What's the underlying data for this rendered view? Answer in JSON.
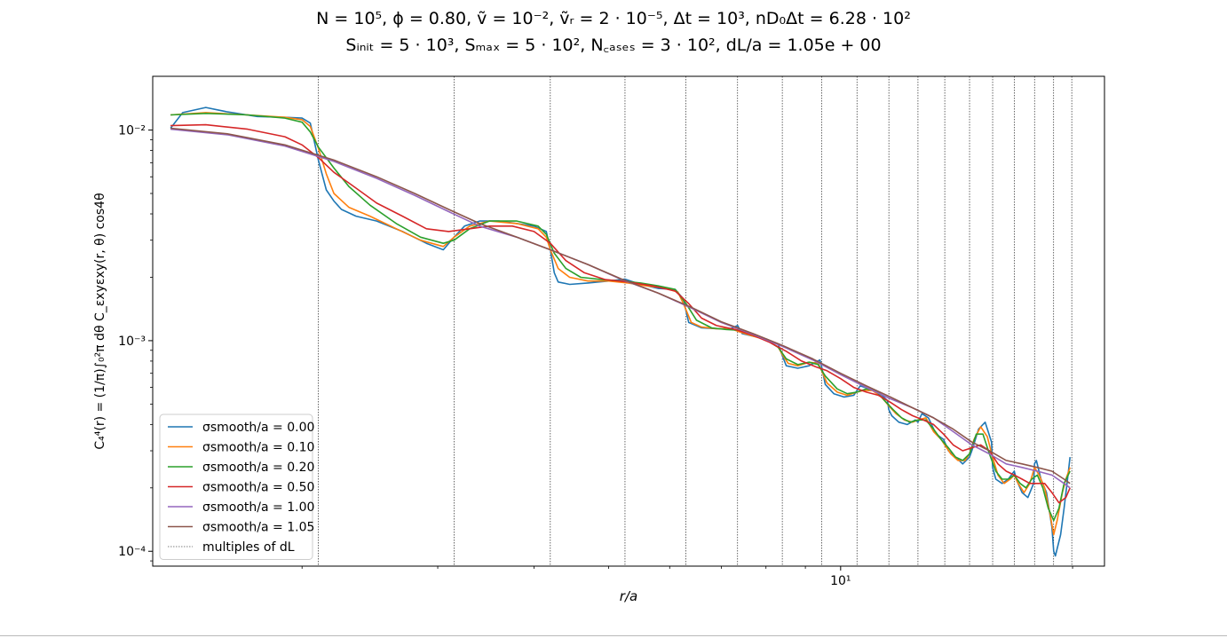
{
  "chart_data": {
    "type": "line",
    "title_line1": "N = 10⁵, ϕ = 0.80, ṽ = 10⁻², ṽᵣ = 2 · 10⁻⁵, Δt = 10³, nD₀Δt = 6.28 · 10²",
    "title_line2": "Sᵢₙᵢₜ = 5 · 10³, Sₘₐₓ = 5 · 10², N꜀ₐₛₑₛ = 3 · 10², dL/a = 1.05e + 00",
    "xlabel": "r/a",
    "ylabel": "C₄⁴(r) = (1/π)∫₀²π dθ C_εxyεxy(r, θ) cos4θ",
    "x_scale": "log",
    "y_scale": "log",
    "xlim": [
      1.28,
      22.0
    ],
    "ylim": [
      8.5e-05,
      0.018
    ],
    "x_tick_labels": [
      {
        "value": 10,
        "label": "10¹"
      }
    ],
    "y_tick_labels": [
      {
        "value": 0.01,
        "label": "10⁻²"
      },
      {
        "value": 0.001,
        "label": "10⁻³"
      },
      {
        "value": 0.0001,
        "label": "10⁻⁴"
      }
    ],
    "grid": false,
    "legend_position": "lower-left",
    "dL_multiples": [
      2.1,
      3.15,
      4.2,
      5.25,
      6.3,
      7.35,
      8.4,
      9.45,
      10.5,
      11.55,
      12.6,
      13.65,
      14.7,
      15.75,
      16.8,
      17.85,
      18.9,
      19.95
    ],
    "dL_multiples_label": "multiples of dL",
    "series": [
      {
        "name": "σsmooth/a = 0.00",
        "color": "#1f77b4",
        "x": [
          1.35,
          1.4,
          1.5,
          1.6,
          1.75,
          1.9,
          2.0,
          2.05,
          2.1,
          2.15,
          2.2,
          2.25,
          2.35,
          2.5,
          2.7,
          2.9,
          3.05,
          3.15,
          3.25,
          3.4,
          3.6,
          3.8,
          4.0,
          4.15,
          4.2,
          4.25,
          4.3,
          4.45,
          4.7,
          5.0,
          5.25,
          5.5,
          5.8,
          6.1,
          6.25,
          6.3,
          6.35,
          6.6,
          6.9,
          7.2,
          7.35,
          7.45,
          7.7,
          8.0,
          8.3,
          8.4,
          8.5,
          8.8,
          9.1,
          9.4,
          9.45,
          9.55,
          9.8,
          10.1,
          10.4,
          10.5,
          10.6,
          10.9,
          11.2,
          11.5,
          11.55,
          11.65,
          11.9,
          12.2,
          12.5,
          12.6,
          12.75,
          13.0,
          13.3,
          13.6,
          13.65,
          13.8,
          14.1,
          14.4,
          14.7,
          14.8,
          15.1,
          15.4,
          15.7,
          15.75,
          15.9,
          16.2,
          16.5,
          16.8,
          16.9,
          17.2,
          17.5,
          17.8,
          17.85,
          17.95,
          18.2,
          18.5,
          18.8,
          18.9,
          19.0,
          19.3,
          19.5,
          19.7,
          19.85
        ],
        "y": [
          0.0102,
          0.0121,
          0.0128,
          0.0122,
          0.0116,
          0.0115,
          0.0114,
          0.0108,
          0.0072,
          0.0052,
          0.0046,
          0.0042,
          0.0039,
          0.0037,
          0.0033,
          0.0029,
          0.0027,
          0.0031,
          0.0035,
          0.0037,
          0.0037,
          0.0036,
          0.0035,
          0.0033,
          0.0027,
          0.0021,
          0.0019,
          0.00185,
          0.00188,
          0.00192,
          0.00196,
          0.00185,
          0.00177,
          0.00175,
          0.00158,
          0.00138,
          0.00122,
          0.00115,
          0.00114,
          0.00114,
          0.00118,
          0.00108,
          0.00105,
          0.00102,
          0.00096,
          0.00085,
          0.00076,
          0.00074,
          0.00076,
          0.00081,
          0.00075,
          0.00062,
          0.00056,
          0.00054,
          0.00055,
          0.00058,
          0.00061,
          0.00059,
          0.00057,
          0.00052,
          0.00047,
          0.00044,
          0.00041,
          0.0004,
          0.00042,
          0.00041,
          0.00045,
          0.00043,
          0.00036,
          0.00034,
          0.00033,
          0.0003,
          0.00028,
          0.00026,
          0.00028,
          0.0003,
          0.00038,
          0.00041,
          0.00033,
          0.00025,
          0.00022,
          0.00021,
          0.00022,
          0.00024,
          0.00022,
          0.00019,
          0.00018,
          0.00021,
          0.00026,
          0.00027,
          0.00022,
          0.00019,
          0.00013,
          0.0001,
          9.5e-05,
          0.00012,
          0.00016,
          0.00022,
          0.00028
        ]
      },
      {
        "name": "σsmooth/a = 0.10",
        "color": "#ff7f0e",
        "x": [
          1.35,
          1.5,
          1.7,
          1.9,
          2.0,
          2.05,
          2.1,
          2.15,
          2.2,
          2.3,
          2.45,
          2.65,
          2.85,
          3.05,
          3.15,
          3.3,
          3.5,
          3.8,
          4.05,
          4.15,
          4.2,
          4.3,
          4.45,
          4.7,
          5.0,
          5.3,
          5.6,
          5.9,
          6.15,
          6.25,
          6.3,
          6.4,
          6.6,
          6.9,
          7.2,
          7.4,
          7.7,
          8.0,
          8.3,
          8.4,
          8.55,
          8.8,
          9.1,
          9.35,
          9.45,
          9.6,
          9.9,
          10.2,
          10.5,
          10.7,
          11.0,
          11.3,
          11.55,
          11.8,
          12.1,
          12.4,
          12.6,
          12.9,
          13.2,
          13.5,
          13.65,
          13.9,
          14.2,
          14.5,
          14.7,
          14.9,
          15.2,
          15.5,
          15.75,
          16.0,
          16.3,
          16.6,
          16.8,
          17.0,
          17.3,
          17.6,
          17.85,
          18.1,
          18.4,
          18.7,
          18.9,
          19.1,
          19.4,
          19.6,
          19.85
        ],
        "y": [
          0.0118,
          0.0121,
          0.0118,
          0.0115,
          0.0112,
          0.0104,
          0.0082,
          0.0062,
          0.005,
          0.0043,
          0.0039,
          0.0034,
          0.003,
          0.0028,
          0.0031,
          0.0035,
          0.0037,
          0.0036,
          0.0034,
          0.0031,
          0.0027,
          0.0022,
          0.002,
          0.00192,
          0.00192,
          0.00188,
          0.00182,
          0.00178,
          0.0017,
          0.0015,
          0.0014,
          0.00122,
          0.00116,
          0.00114,
          0.00114,
          0.0011,
          0.00105,
          0.00101,
          0.00093,
          0.00086,
          0.00078,
          0.00076,
          0.00079,
          0.00078,
          0.00072,
          0.00063,
          0.00057,
          0.00055,
          0.00057,
          0.00058,
          0.00058,
          0.00054,
          0.00049,
          0.00045,
          0.00042,
          0.00041,
          0.00042,
          0.00043,
          0.00037,
          0.00034,
          0.00032,
          0.00029,
          0.00027,
          0.00027,
          0.00029,
          0.00034,
          0.00039,
          0.00035,
          0.00028,
          0.00023,
          0.00021,
          0.00022,
          0.00023,
          0.00021,
          0.00019,
          0.00021,
          0.00025,
          0.00023,
          0.0002,
          0.00015,
          0.00012,
          0.00014,
          0.00019,
          0.00022,
          0.00025
        ]
      },
      {
        "name": "σsmooth/a = 0.20",
        "color": "#2ca02c",
        "x": [
          1.35,
          1.5,
          1.7,
          1.9,
          2.0,
          2.05,
          2.1,
          2.2,
          2.3,
          2.45,
          2.65,
          2.85,
          3.05,
          3.15,
          3.3,
          3.5,
          3.8,
          4.05,
          4.15,
          4.25,
          4.4,
          4.6,
          4.9,
          5.2,
          5.5,
          5.8,
          6.1,
          6.3,
          6.5,
          6.8,
          7.1,
          7.4,
          7.7,
          8.0,
          8.3,
          8.5,
          8.8,
          9.1,
          9.35,
          9.55,
          9.9,
          10.2,
          10.5,
          10.8,
          11.1,
          11.4,
          11.7,
          12.0,
          12.3,
          12.6,
          12.9,
          13.2,
          13.5,
          13.8,
          14.1,
          14.4,
          14.7,
          15.0,
          15.3,
          15.6,
          15.9,
          16.2,
          16.5,
          16.8,
          17.1,
          17.4,
          17.7,
          18.0,
          18.3,
          18.6,
          18.9,
          19.2,
          19.5,
          19.85
        ],
        "y": [
          0.0118,
          0.012,
          0.0118,
          0.0114,
          0.0109,
          0.0098,
          0.0083,
          0.0066,
          0.0054,
          0.0044,
          0.0036,
          0.0031,
          0.0029,
          0.003,
          0.0034,
          0.0037,
          0.0037,
          0.0035,
          0.0032,
          0.0026,
          0.0022,
          0.002,
          0.00195,
          0.00192,
          0.00188,
          0.00182,
          0.00175,
          0.0015,
          0.00125,
          0.00115,
          0.00113,
          0.00112,
          0.00106,
          0.00101,
          0.00093,
          0.00082,
          0.00077,
          0.00079,
          0.00077,
          0.00068,
          0.00059,
          0.00056,
          0.00057,
          0.00059,
          0.00058,
          0.00052,
          0.00047,
          0.00043,
          0.00041,
          0.00042,
          0.00042,
          0.00038,
          0.00034,
          0.00031,
          0.00028,
          0.00027,
          0.00029,
          0.00036,
          0.00036,
          0.00029,
          0.00024,
          0.00022,
          0.00022,
          0.00023,
          0.00021,
          0.0002,
          0.00022,
          0.00023,
          0.0002,
          0.00016,
          0.00014,
          0.00016,
          0.00021,
          0.00024
        ]
      },
      {
        "name": "σsmooth/a = 0.50",
        "color": "#d62728",
        "x": [
          1.35,
          1.5,
          1.7,
          1.9,
          2.0,
          2.1,
          2.2,
          2.35,
          2.5,
          2.7,
          2.9,
          3.1,
          3.3,
          3.5,
          3.75,
          4.0,
          4.2,
          4.4,
          4.65,
          4.95,
          5.3,
          5.7,
          6.1,
          6.35,
          6.6,
          6.9,
          7.3,
          7.7,
          8.1,
          8.5,
          8.9,
          9.3,
          9.6,
          10.0,
          10.4,
          10.8,
          11.2,
          11.6,
          12.0,
          12.4,
          12.8,
          13.2,
          13.6,
          14.0,
          14.4,
          14.8,
          15.2,
          15.6,
          16.0,
          16.4,
          16.8,
          17.2,
          17.6,
          18.0,
          18.4,
          18.8,
          19.2,
          19.6,
          19.85
        ],
        "y": [
          0.0105,
          0.0106,
          0.0101,
          0.0093,
          0.0085,
          0.0074,
          0.0063,
          0.0053,
          0.0045,
          0.0039,
          0.0034,
          0.0033,
          0.0034,
          0.0035,
          0.0035,
          0.0033,
          0.0029,
          0.0024,
          0.0021,
          0.00195,
          0.0019,
          0.00182,
          0.00172,
          0.0015,
          0.00128,
          0.00118,
          0.00113,
          0.00106,
          0.00098,
          0.00089,
          0.0008,
          0.00075,
          0.00072,
          0.00066,
          0.0006,
          0.00057,
          0.00055,
          0.00051,
          0.00047,
          0.00044,
          0.00042,
          0.0004,
          0.00036,
          0.00032,
          0.0003,
          0.00031,
          0.00032,
          0.0003,
          0.00026,
          0.00024,
          0.00023,
          0.00022,
          0.00021,
          0.00021,
          0.00021,
          0.00019,
          0.00017,
          0.00018,
          0.0002
        ]
      },
      {
        "name": "σsmooth/a = 1.00",
        "color": "#9467bd",
        "x": [
          1.35,
          1.6,
          1.9,
          2.2,
          2.5,
          2.8,
          3.1,
          3.4,
          3.8,
          4.2,
          4.7,
          5.2,
          5.8,
          6.4,
          7.0,
          7.7,
          8.4,
          9.2,
          10.0,
          10.8,
          11.6,
          12.4,
          13.2,
          14.0,
          14.8,
          15.6,
          16.4,
          17.2,
          18.0,
          18.8,
          19.5,
          19.85
        ],
        "y": [
          0.0101,
          0.0095,
          0.0084,
          0.0071,
          0.0059,
          0.0049,
          0.0041,
          0.0035,
          0.0031,
          0.0027,
          0.0023,
          0.00195,
          0.00168,
          0.00143,
          0.00122,
          0.00107,
          0.00094,
          0.00081,
          0.00069,
          0.0006,
          0.00053,
          0.00048,
          0.00043,
          0.00037,
          0.00032,
          0.00029,
          0.00026,
          0.00025,
          0.00024,
          0.00023,
          0.00021,
          0.0002
        ]
      },
      {
        "name": "σsmooth/a = 1.05",
        "color": "#8c564b",
        "x": [
          1.35,
          1.6,
          1.9,
          2.2,
          2.5,
          2.8,
          3.1,
          3.4,
          3.8,
          4.2,
          4.7,
          5.2,
          5.8,
          6.4,
          7.0,
          7.7,
          8.4,
          9.2,
          10.0,
          10.8,
          11.6,
          12.4,
          13.2,
          14.0,
          14.8,
          15.6,
          16.4,
          17.2,
          18.0,
          18.8,
          19.5,
          19.85
        ],
        "y": [
          0.0102,
          0.0096,
          0.0085,
          0.0072,
          0.006,
          0.005,
          0.0042,
          0.0036,
          0.0031,
          0.0027,
          0.0023,
          0.00196,
          0.00168,
          0.00144,
          0.00123,
          0.00108,
          0.00095,
          0.00082,
          0.0007,
          0.00061,
          0.00054,
          0.00048,
          0.00043,
          0.00038,
          0.00033,
          0.0003,
          0.00027,
          0.00026,
          0.00025,
          0.00024,
          0.00022,
          0.00021
        ]
      }
    ]
  }
}
